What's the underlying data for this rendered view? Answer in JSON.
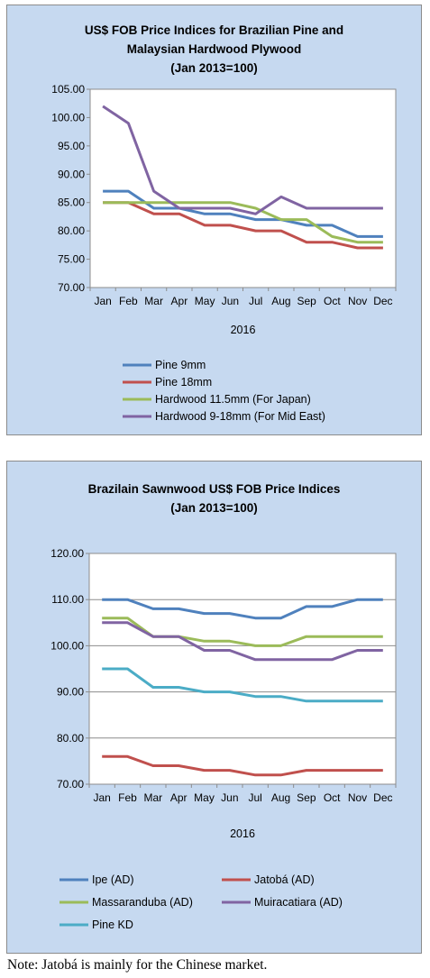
{
  "note": "Note: Jatobá is mainly for the Chinese market.",
  "chart_data": [
    {
      "type": "line",
      "title": [
        "US$ FOB Price Indices for Brazilian Pine and",
        "Malaysian Hardwood Plywood",
        "(Jan 2013=100)"
      ],
      "xlabel": "2016",
      "ylabel": "",
      "categories": [
        "Jan",
        "Feb",
        "Mar",
        "Apr",
        "May",
        "Jun",
        "Jul",
        "Aug",
        "Sep",
        "Oct",
        "Nov",
        "Dec"
      ],
      "ylim": [
        70,
        105
      ],
      "yticks": [
        "70.00",
        "75.00",
        "80.00",
        "85.00",
        "90.00",
        "95.00",
        "100.00",
        "105.00"
      ],
      "legend_position": "bottom",
      "grid": false,
      "series": [
        {
          "name": "Pine 9mm",
          "color": "#4f81bd",
          "values": [
            87,
            87,
            84,
            84,
            83,
            83,
            82,
            82,
            81,
            81,
            79,
            79
          ]
        },
        {
          "name": "Pine 18mm",
          "color": "#c0504d",
          "values": [
            85,
            85,
            83,
            83,
            81,
            81,
            80,
            80,
            78,
            78,
            77,
            77
          ]
        },
        {
          "name": "Hardwood 11.5mm (For Japan)",
          "color": "#9bbb59",
          "values": [
            85,
            85,
            85,
            85,
            85,
            85,
            84,
            82,
            82,
            79,
            78,
            78
          ]
        },
        {
          "name": "Hardwood 9-18mm (For Mid East)",
          "color": "#8064a2",
          "values": [
            102,
            99,
            87,
            84,
            84,
            84,
            83,
            86,
            84,
            84,
            84,
            84
          ]
        }
      ]
    },
    {
      "type": "line",
      "title": [
        "Brazilain Sawnwood US$ FOB Price Indices",
        "(Jan 2013=100)"
      ],
      "xlabel": "2016",
      "ylabel": "",
      "categories": [
        "Jan",
        "Feb",
        "Mar",
        "Apr",
        "May",
        "Jun",
        "Jul",
        "Aug",
        "Sep",
        "Oct",
        "Nov",
        "Dec"
      ],
      "ylim": [
        70,
        120
      ],
      "yticks": [
        "70.00",
        "80.00",
        "90.00",
        "100.00",
        "110.00",
        "120.00"
      ],
      "legend_position": "bottom",
      "grid": true,
      "series": [
        {
          "name": "Ipe (AD)",
          "color": "#4f81bd",
          "values": [
            110,
            110,
            108,
            108,
            107,
            107,
            106,
            106,
            108.5,
            108.5,
            110,
            110
          ]
        },
        {
          "name": "Jatobá (AD)",
          "color": "#c0504d",
          "values": [
            76,
            76,
            74,
            74,
            73,
            73,
            72,
            72,
            73,
            73,
            73,
            73
          ]
        },
        {
          "name": "Massaranduba (AD)",
          "color": "#9bbb59",
          "values": [
            106,
            106,
            102,
            102,
            101,
            101,
            100,
            100,
            102,
            102,
            102,
            102
          ]
        },
        {
          "name": "Muiracatiara (AD)",
          "color": "#8064a2",
          "values": [
            105,
            105,
            102,
            102,
            99,
            99,
            97,
            97,
            97,
            97,
            99,
            99
          ]
        },
        {
          "name": "Pine KD",
          "color": "#4bacc6",
          "values": [
            95,
            95,
            91,
            91,
            90,
            90,
            89,
            89,
            88,
            88,
            88,
            88
          ]
        }
      ]
    }
  ]
}
